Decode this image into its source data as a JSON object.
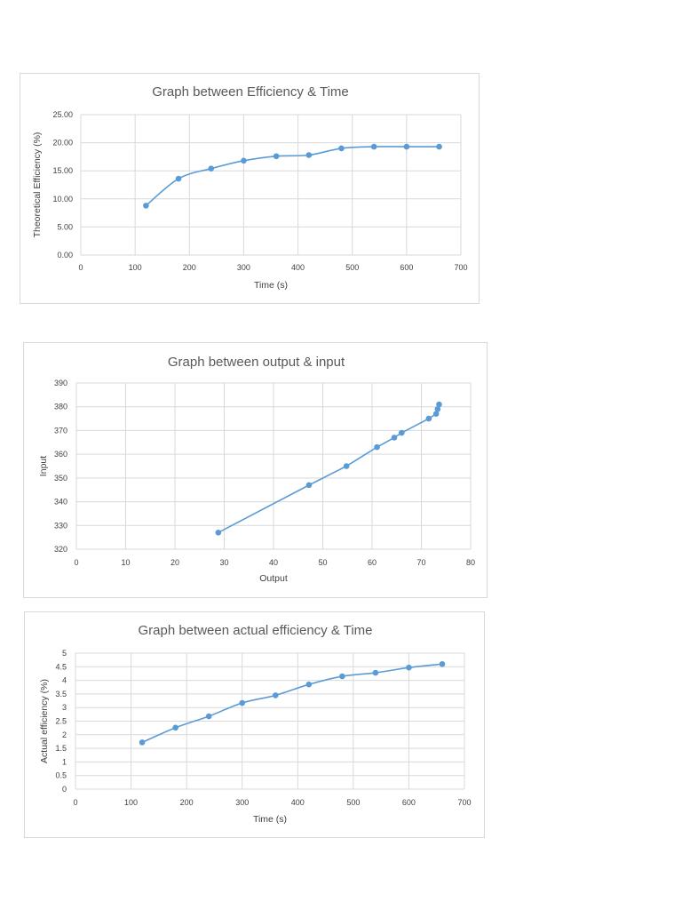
{
  "colors": {
    "series": "#5b9bd5"
  },
  "chart_data": [
    {
      "type": "line",
      "title": "Graph between Efficiency & Time",
      "xlabel": "Time (s)",
      "ylabel": "Theoretical Efficiency (%)",
      "xlim": [
        0,
        700
      ],
      "ylim": [
        0,
        25
      ],
      "x_ticks": [
        "0",
        "100",
        "200",
        "300",
        "400",
        "500",
        "600",
        "700"
      ],
      "y_ticks": [
        "0.00",
        "5.00",
        "10.00",
        "15.00",
        "20.00",
        "25.00"
      ],
      "smooth": true,
      "grid": true,
      "series": [
        {
          "x": [
            120,
            180,
            240,
            300,
            360,
            420,
            480,
            540,
            600,
            660
          ],
          "y": [
            8.8,
            13.6,
            15.4,
            16.8,
            17.6,
            17.8,
            19.0,
            19.3,
            19.3,
            19.3
          ]
        }
      ]
    },
    {
      "type": "line",
      "title": "Graph between output & input",
      "xlabel": "Output",
      "ylabel": "Input",
      "xlim": [
        0,
        80
      ],
      "ylim": [
        320,
        390
      ],
      "x_ticks": [
        "0",
        "10",
        "20",
        "30",
        "40",
        "50",
        "60",
        "70",
        "80"
      ],
      "y_ticks": [
        "320",
        "330",
        "340",
        "350",
        "360",
        "370",
        "380",
        "390"
      ],
      "smooth": false,
      "grid": true,
      "series": [
        {
          "x": [
            28.8,
            47.2,
            54.8,
            61.0,
            64.5,
            66.0,
            71.5,
            73.0,
            73.3,
            73.6
          ],
          "y": [
            327.0,
            347.0,
            355.0,
            363.0,
            367.0,
            369.0,
            375.0,
            377.0,
            379.0,
            381.0
          ]
        }
      ]
    },
    {
      "type": "line",
      "title": "Graph between actual efficiency & Time",
      "xlabel": "Time (s)",
      "ylabel": "Actual efficiency (%)",
      "xlim": [
        0,
        700
      ],
      "ylim": [
        0,
        5
      ],
      "x_ticks": [
        "0",
        "100",
        "200",
        "300",
        "400",
        "500",
        "600",
        "700"
      ],
      "y_ticks": [
        "0",
        "0.5",
        "1",
        "1.5",
        "2",
        "2.5",
        "3",
        "3.5",
        "4",
        "4.5",
        "5"
      ],
      "smooth": true,
      "grid": true,
      "series": [
        {
          "x": [
            120,
            180,
            240,
            300,
            360,
            420,
            480,
            540,
            600,
            660
          ],
          "y": [
            1.72,
            2.26,
            2.68,
            3.17,
            3.45,
            3.85,
            4.15,
            4.28,
            4.47,
            4.6
          ]
        }
      ]
    }
  ]
}
